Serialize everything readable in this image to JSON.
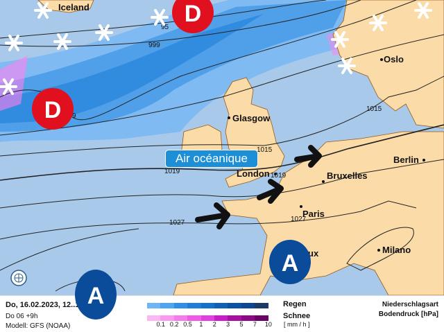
{
  "map": {
    "cities": [
      "Iceland",
      "Oslo",
      "Glasgow",
      "London",
      "Bruxelles",
      "Paris",
      "Berlin",
      "Milano",
      "ux"
    ],
    "isobar_labels": [
      "95",
      "999",
      "9",
      "1015",
      "1015",
      "1019",
      "1019",
      "1027",
      "1027"
    ],
    "pressure_systems": {
      "low": "D",
      "high": "A"
    },
    "annotation": "Air océanique",
    "colors": {
      "sea": "#a8c9ea",
      "land": "#fbdba8",
      "low": "#e0101e",
      "high": "#0a4c9a",
      "rain": "#2e86de",
      "snow": "#ff80f0"
    }
  },
  "footer": {
    "date": "Do, 16.02.2023, 12..1",
    "run": "Do 06 +9h",
    "model": "Modell: GFS (NOAA)",
    "rain_label": "Regen",
    "snow_label": "Schnee",
    "unit": "[ mm / h ]",
    "ticks": [
      "0.1",
      "0.2",
      "0.5",
      "1",
      "2",
      "3",
      "5",
      "7",
      "10"
    ],
    "type_title": "Niederschlagsart",
    "pressure_title": "Bodendruck [hPa]",
    "rain_colors": [
      "#6db5f5",
      "#4ea4ef",
      "#2f8fe6",
      "#1e7ed9",
      "#1370cb",
      "#0f61b8",
      "#0a52a3",
      "#0b4690",
      "#1d3a63"
    ],
    "snow_colors": [
      "#fbb6f4",
      "#f99af0",
      "#f57cec",
      "#f05be6",
      "#e040e0",
      "#c81dc8",
      "#a8109f",
      "#8c0a85",
      "#6a0566"
    ]
  }
}
